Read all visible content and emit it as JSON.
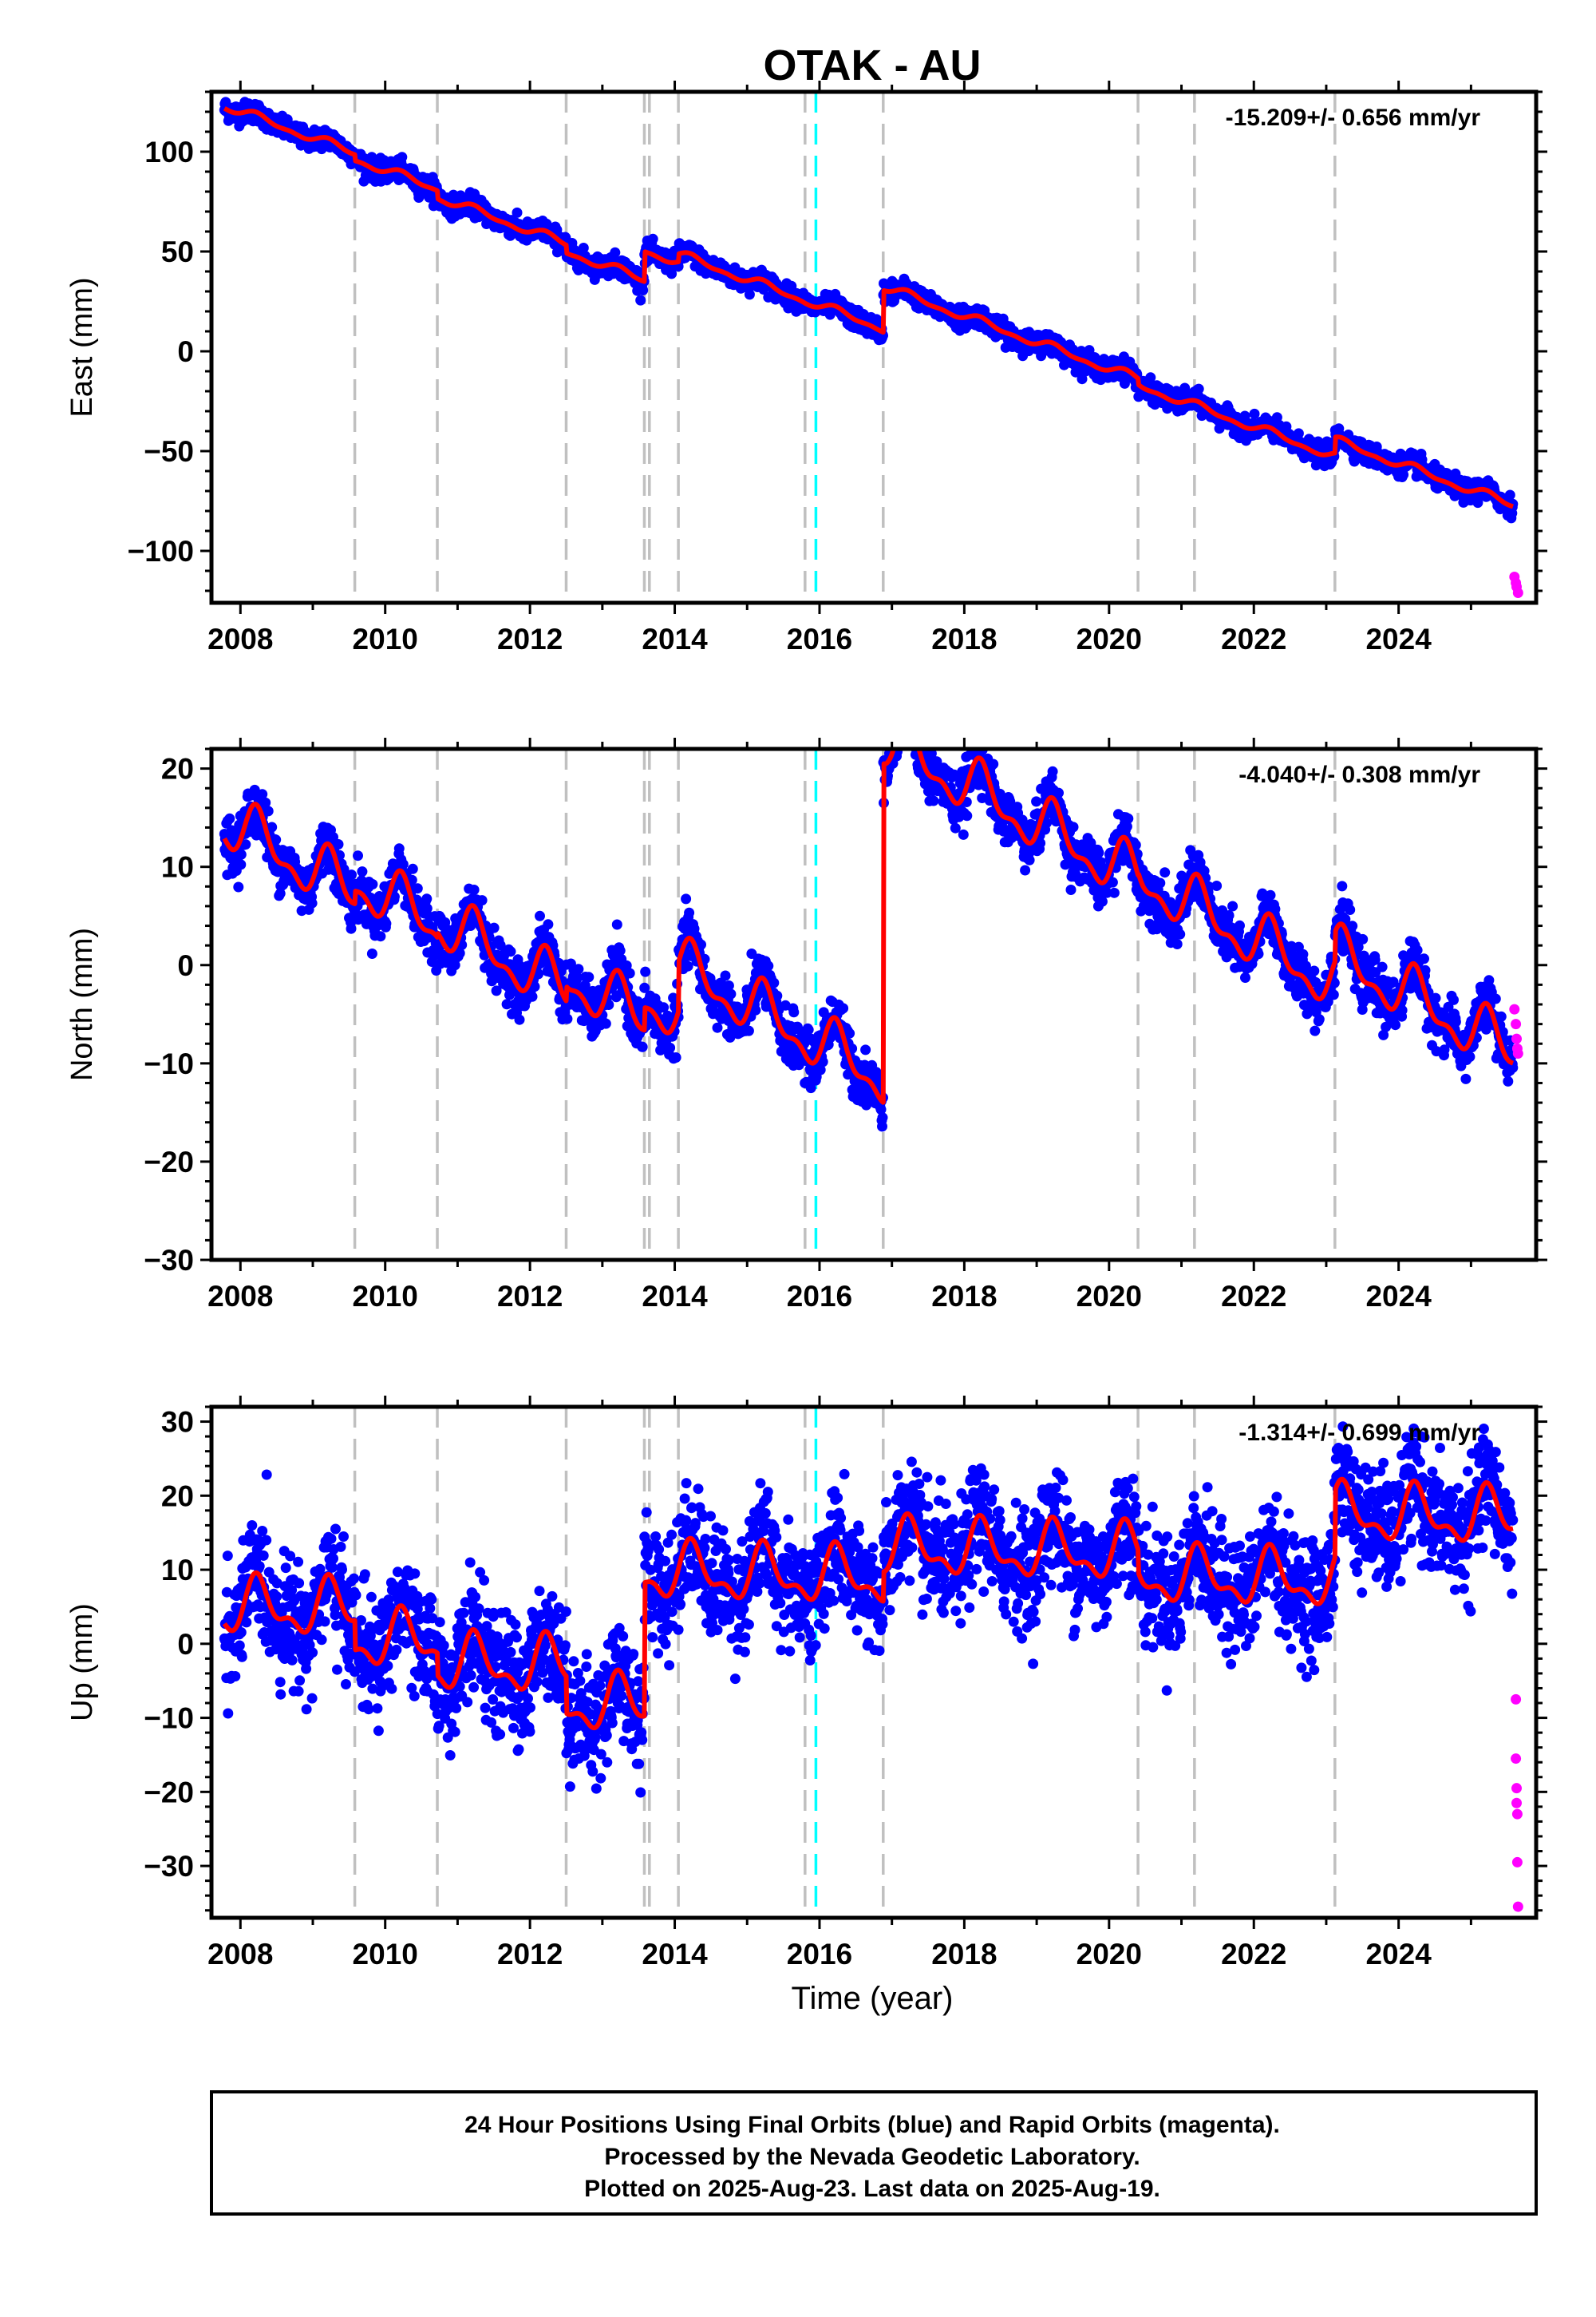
{
  "title": "OTAK - AU",
  "xlabel": "Time (year)",
  "footer": {
    "line1": "24 Hour Positions Using Final Orbits (blue) and Rapid Orbits (magenta).",
    "line2": "Processed by the Nevada Geodetic Laboratory.",
    "line3": "Plotted on 2025-Aug-23. Last data on 2025-Aug-19."
  },
  "colors": {
    "final_points": "#0000ff",
    "rapid_points": "#ff00ff",
    "model": "#ff0000",
    "equipment_change": "#c0c0c0",
    "earthquake": "#00ffff"
  },
  "chart_data": [
    {
      "type": "scatter",
      "component": "east",
      "ylabel": "East (mm)",
      "rate_text": "-15.209+/- 0.656 mm/yr",
      "xlim": [
        2007.6,
        2025.9
      ],
      "ylim": [
        -126,
        130
      ],
      "xticks": [
        2008,
        2010,
        2012,
        2014,
        2016,
        2018,
        2020,
        2022,
        2024
      ],
      "yticks": [
        -100,
        -50,
        0,
        50,
        100
      ],
      "grid": false,
      "model": {
        "start": 2007.78,
        "end": 2025.58,
        "trend": [
          2007.78,
          123,
          2025.58,
          -111
        ],
        "annual_amp": 1.8,
        "offsets": [
          [
            2009.58,
            -3
          ],
          [
            2010.72,
            -4
          ],
          [
            2012.5,
            -4
          ],
          [
            2013.58,
            15
          ],
          [
            2014.05,
            4
          ],
          [
            2016.88,
            21
          ],
          [
            2020.4,
            -3
          ],
          [
            2023.12,
            8
          ]
        ]
      },
      "scatter_sigma": 2.5,
      "rapid": [
        [
          2025.6,
          -113
        ],
        [
          2025.62,
          -116
        ],
        [
          2025.63,
          -118
        ],
        [
          2025.65,
          -121
        ]
      ]
    },
    {
      "type": "scatter",
      "component": "north",
      "ylabel": "North (mm)",
      "rate_text": "-4.040+/- 0.308 mm/yr",
      "xlim": [
        2007.6,
        2025.9
      ],
      "ylim": [
        -30,
        22
      ],
      "xticks": [
        2008,
        2010,
        2012,
        2014,
        2016,
        2018,
        2020,
        2022,
        2024
      ],
      "yticks": [
        -30,
        -20,
        -10,
        0,
        10,
        20
      ],
      "grid": false,
      "model": {
        "start": 2007.78,
        "end": 2025.58,
        "trend": [
          2007.78,
          14.6,
          2025.58,
          -57.3
        ],
        "annual_amp": 2.4,
        "offsets": [
          [
            2009.58,
            1.3
          ],
          [
            2010.72,
            0.5
          ],
          [
            2012.5,
            1.5
          ],
          [
            2013.58,
            2.3
          ],
          [
            2014.05,
            5.0
          ],
          [
            2016.88,
            34.5
          ],
          [
            2020.4,
            0.3
          ],
          [
            2023.12,
            3.0
          ]
        ]
      },
      "scatter_sigma": 1.3,
      "rapid": [
        [
          2025.6,
          -4.5
        ],
        [
          2025.62,
          -6
        ],
        [
          2025.63,
          -7.5
        ],
        [
          2025.64,
          -8.5
        ],
        [
          2025.65,
          -9
        ]
      ]
    },
    {
      "type": "scatter",
      "component": "up",
      "ylabel": "Up (mm)",
      "rate_text": "-1.314+/- 0.699 mm/yr",
      "xlim": [
        2007.6,
        2025.9
      ],
      "ylim": [
        -37,
        32
      ],
      "xticks": [
        2008,
        2010,
        2012,
        2014,
        2016,
        2018,
        2020,
        2022,
        2024
      ],
      "yticks": [
        -30,
        -20,
        -10,
        0,
        10,
        20,
        30
      ],
      "grid": false,
      "model": {
        "start": 2007.78,
        "end": 2025.58,
        "trend": [
          2007.78,
          5.0,
          2025.58,
          1.0
        ],
        "annual_amp": 3.2,
        "offsets": [
          [
            2009.58,
            -4
          ],
          [
            2010.72,
            -3
          ],
          [
            2012.5,
            -5
          ],
          [
            2013.58,
            18
          ],
          [
            2014.05,
            0
          ],
          [
            2016.88,
            4
          ],
          [
            2020.4,
            -3
          ],
          [
            2023.12,
            9
          ]
        ]
      },
      "scatter_sigma": 3.8,
      "rapid": [
        [
          2025.62,
          -7.5
        ],
        [
          2025.62,
          -15.5
        ],
        [
          2025.63,
          -19.5
        ],
        [
          2025.63,
          -21.5
        ],
        [
          2025.64,
          -23
        ],
        [
          2025.64,
          -29.5
        ],
        [
          2025.65,
          -35.5
        ]
      ]
    }
  ],
  "events": {
    "equipment_changes": [
      2009.58,
      2010.72,
      2012.5,
      2013.58,
      2013.65,
      2014.05,
      2015.8,
      2016.88,
      2020.4,
      2021.18,
      2023.12
    ],
    "earthquakes": [
      2015.95
    ]
  }
}
